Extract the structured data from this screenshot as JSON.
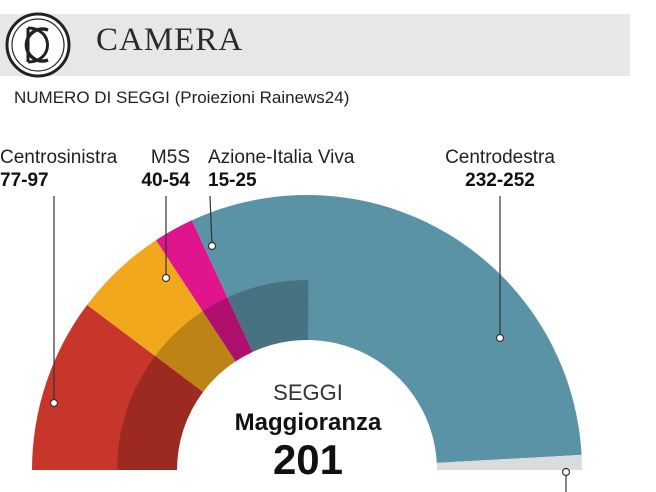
{
  "header": {
    "title": "CAMERA",
    "subtitle": "NUMERO DI SEGGI (Proiezioni Rainews24)"
  },
  "colors": {
    "centrosinistra": "#c8362b",
    "m5s": "#f2a81d",
    "azione": "#e0158e",
    "centrodestra": "#5b93a6",
    "majority_overlay": "#000000"
  },
  "icons": {
    "logo": "camera-dei-deputati-monogram-icon"
  },
  "chart_data": {
    "type": "pie",
    "variant": "parliament-semicircle",
    "title": "CAMERA",
    "subtitle": "NUMERO DI SEGGI (Proiezioni Rainews24)",
    "total_seats": 400,
    "majority_seats": 201,
    "series": [
      {
        "name": "Centrosinistra",
        "label": "77-97",
        "range": [
          77,
          97
        ],
        "value": 82,
        "color": "#c8362b"
      },
      {
        "name": "M5S",
        "label": "40-54",
        "range": [
          40,
          54
        ],
        "value": 44,
        "color": "#f2a81d"
      },
      {
        "name": "Azione-Italia Viva",
        "label": "15-25",
        "range": [
          15,
          25
        ],
        "value": 19,
        "color": "#e0158e"
      },
      {
        "name": "Centrodestra",
        "label": "232-252",
        "range": [
          232,
          252
        ],
        "value": 248,
        "color": "#5b93a6"
      }
    ],
    "center": {
      "line1": "SEGGI",
      "line2": "Maggioranza",
      "line3": "201"
    }
  }
}
